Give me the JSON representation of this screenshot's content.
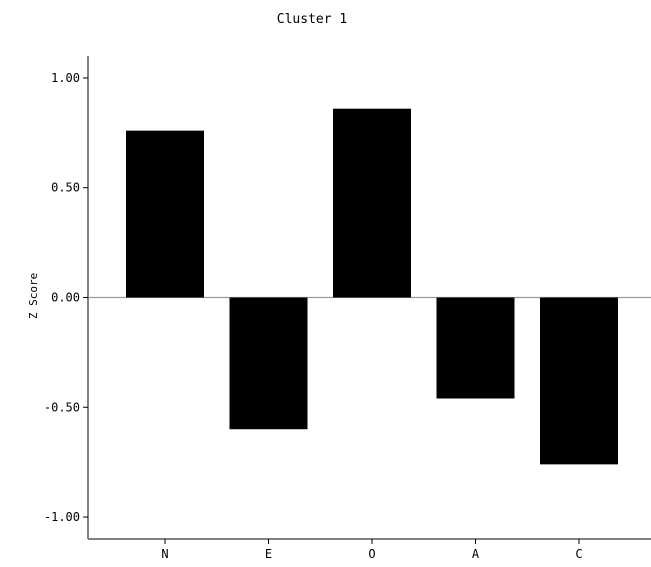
{
  "chart_data": {
    "type": "bar",
    "title": "Cluster 1",
    "xlabel": "",
    "ylabel": "Z Score",
    "categories": [
      "N",
      "E",
      "O",
      "A",
      "C"
    ],
    "values": [
      0.76,
      -0.6,
      0.86,
      -0.46,
      -0.76
    ],
    "ylim": [
      -1.1,
      1.1
    ],
    "yticks": [
      1.0,
      0.5,
      0.0,
      -0.5,
      -1.0
    ],
    "ytick_labels": [
      "1.00",
      "0.50",
      "0.00",
      "-0.50",
      "-1.00"
    ],
    "grid": false,
    "bar_color": "#000000",
    "axis_color": "#7f7f7f",
    "zero_line_color": "#9a9a9a"
  }
}
